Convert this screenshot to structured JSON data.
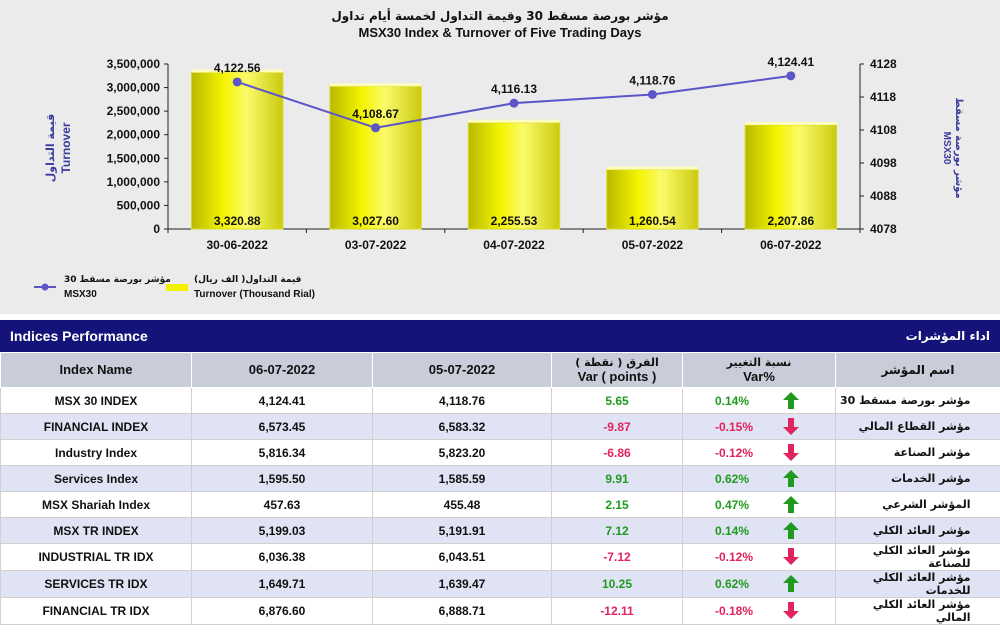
{
  "chart_data": {
    "type": "bar",
    "title_ar": "مؤشر بورصة مسقط 30 وقيمة التداول لخمسة أيام تداول",
    "title": "MSX30 Index & Turnover of Five Trading Days",
    "categories": [
      "30-06-2022",
      "03-07-2022",
      "04-07-2022",
      "05-07-2022",
      "06-07-2022"
    ],
    "series": [
      {
        "name": "Turnover (Thousand Rial)",
        "name_ar": "قيمة التداول( الف ريال)",
        "type": "bar",
        "axis": "left",
        "values": [
          3320.88,
          3027.6,
          2255.53,
          1260.54,
          2207.86
        ],
        "labels": [
          "3,320.88",
          "3,027.60",
          "2,255.53",
          "1,260.54",
          "2,207.86"
        ]
      },
      {
        "name": "MSX30",
        "name_ar": "مؤشر بورصة مسقط 30",
        "type": "line",
        "axis": "right",
        "values": [
          4122.56,
          4108.67,
          4116.13,
          4118.76,
          4124.41
        ],
        "labels": [
          "4,122.56",
          "4,108.67",
          "4,116.13",
          "4,118.76",
          "4,124.41"
        ]
      }
    ],
    "y_left": {
      "label_ar": "قيمة التداول",
      "label": "Turnover",
      "range": [
        0,
        3500000
      ],
      "ticks": [
        "0",
        "500,000",
        "1,000,000",
        "1,500,000",
        "2,000,000",
        "2,500,000",
        "3,000,000",
        "3,500,000"
      ]
    },
    "y_right": {
      "label_ar": "مؤشر بورصة مسقط",
      "label": "MSX30",
      "range": [
        4078,
        4128
      ],
      "ticks": [
        "4078",
        "4088",
        "4098",
        "4108",
        "4118",
        "4128"
      ]
    },
    "legend_position": "bottom-left",
    "colors": {
      "bar": "#f2f200",
      "line": "#5b55c8",
      "axis_label": "#3b3b9e"
    }
  },
  "table": {
    "title": "Indices Performance",
    "title_ar": "اداء المؤشرات",
    "headers": {
      "name": "Index Name",
      "d1": "06-07-2022",
      "d2": "05-07-2022",
      "var_ar": "الفرق ( نقطة )",
      "var": "Var ( points )",
      "pct_ar": "نسبة التغيير",
      "pct": "Var%",
      "name_ar": "اسم المؤشر"
    },
    "rows": [
      {
        "name": "MSX 30 INDEX",
        "d1": "4,124.41",
        "d2": "4,118.76",
        "var": "5.65",
        "pct": "0.14%",
        "dir": "up",
        "name_ar": "مؤشر بورصة مسقط 30"
      },
      {
        "name": "FINANCIAL INDEX",
        "d1": "6,573.45",
        "d2": "6,583.32",
        "var": "-9.87",
        "pct": "-0.15%",
        "dir": "down",
        "name_ar": "مؤشر القطاع المالي"
      },
      {
        "name": "Industry Index",
        "d1": "5,816.34",
        "d2": "5,823.20",
        "var": "-6.86",
        "pct": "-0.12%",
        "dir": "down",
        "name_ar": "مؤشر الصناعة"
      },
      {
        "name": "Services Index",
        "d1": "1,595.50",
        "d2": "1,585.59",
        "var": "9.91",
        "pct": "0.62%",
        "dir": "up",
        "name_ar": "مؤشر الخدمات"
      },
      {
        "name": "MSX Shariah Index",
        "d1": "457.63",
        "d2": "455.48",
        "var": "2.15",
        "pct": "0.47%",
        "dir": "up",
        "name_ar": "المؤشر الشرعي"
      },
      {
        "name": "MSX TR INDEX",
        "d1": "5,199.03",
        "d2": "5,191.91",
        "var": "7.12",
        "pct": "0.14%",
        "dir": "up",
        "name_ar": "مؤشر العائد الكلي"
      },
      {
        "name": "INDUSTRIAL TR IDX",
        "d1": "6,036.38",
        "d2": "6,043.51",
        "var": "-7.12",
        "pct": "-0.12%",
        "dir": "down",
        "name_ar": "مؤشر العائد الكلي للصناعة"
      },
      {
        "name": "SERVICES TR IDX",
        "d1": "1,649.71",
        "d2": "1,639.47",
        "var": "10.25",
        "pct": "0.62%",
        "dir": "up",
        "name_ar": "مؤشر العائد الكلي للخدمات"
      },
      {
        "name": "FINANCIAL TR IDX",
        "d1": "6,876.60",
        "d2": "6,888.71",
        "var": "-12.11",
        "pct": "-0.18%",
        "dir": "down",
        "name_ar": "مؤشر العائد الكلي المالي"
      }
    ],
    "colors": {
      "up": "#1f9a1f",
      "down": "#e0245e",
      "header_bar": "#13137a"
    }
  }
}
